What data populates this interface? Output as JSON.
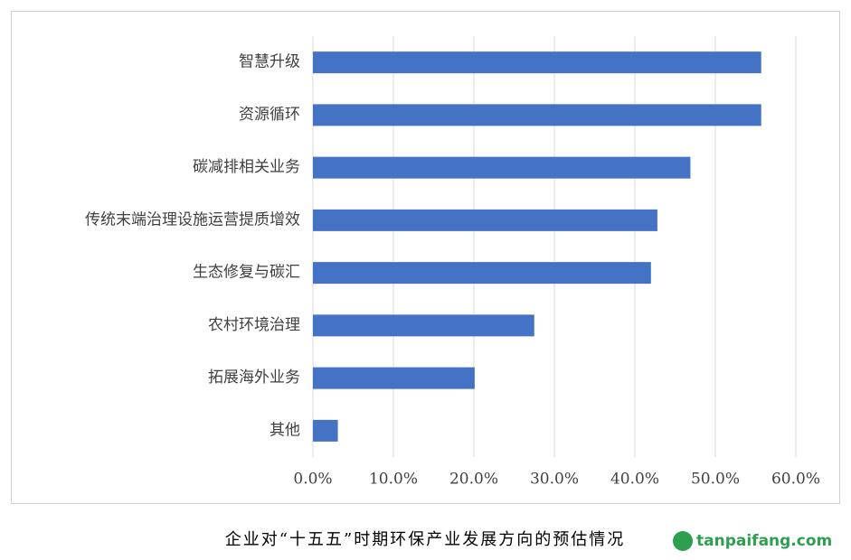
{
  "chart_data": {
    "type": "bar",
    "orientation": "horizontal",
    "caption": "企业对“十五五”时期环保产业发展方向的预估情况",
    "categories": [
      "智慧升级",
      "资源循环",
      "碳减排相关业务",
      "传统末端治理设施运营提质增效",
      "生态修复与碳汇",
      "农村环境治理",
      "拓展海外业务",
      "其他"
    ],
    "values": [
      55.7,
      55.7,
      46.9,
      42.8,
      42.0,
      27.5,
      20.1,
      3.1
    ],
    "color": "#4472c4",
    "xlim": [
      0,
      60
    ],
    "xticks": [
      {
        "value": 0,
        "label": "0.0%"
      },
      {
        "value": 10,
        "label": "10.0%"
      },
      {
        "value": 20,
        "label": "20.0%"
      },
      {
        "value": 30,
        "label": "30.0%"
      },
      {
        "value": 40,
        "label": "40.0%"
      },
      {
        "value": 50,
        "label": "50.0%"
      },
      {
        "value": 60,
        "label": "60.0%"
      }
    ],
    "grid": true
  },
  "watermark": "tanpaifang.com"
}
